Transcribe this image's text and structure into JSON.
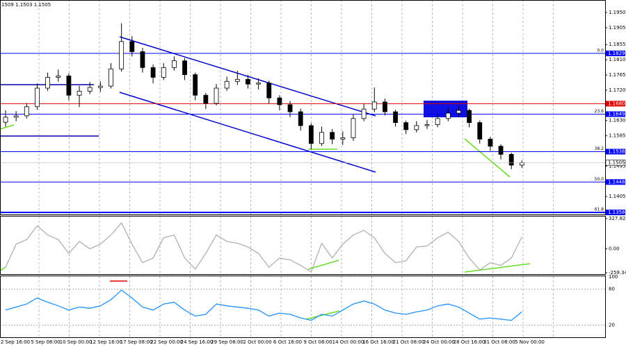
{
  "chart_data": {
    "type": "candlestick",
    "header": "1509 1.1503 1.1505",
    "open": [
      1.1625,
      1.164,
      1.1644,
      1.1671,
      1.1726,
      1.1758,
      1.1762,
      1.1705,
      1.1717,
      1.1728,
      1.1732,
      1.1783,
      1.1864,
      1.1834,
      1.1787,
      1.1758,
      1.1787,
      1.1807,
      1.1766,
      1.1705,
      1.1681,
      1.1726,
      1.1746,
      1.1752,
      1.1738,
      1.1741,
      1.1697,
      1.1677,
      1.1656,
      1.1615,
      1.1562,
      1.1595,
      1.1575,
      1.1579,
      1.1636,
      1.1664,
      1.1685,
      1.1656,
      1.1624,
      1.1603,
      1.1615,
      1.1618,
      1.1636,
      1.1652,
      1.166,
      1.1624,
      1.1575,
      1.1554,
      1.153,
      1.1498
    ],
    "high": [
      1.166,
      1.1658,
      1.1682,
      1.174,
      1.1772,
      1.1781,
      1.177,
      1.1733,
      1.1744,
      1.1746,
      1.18,
      1.1918,
      1.188,
      1.1845,
      1.1796,
      1.18,
      1.182,
      1.1815,
      1.1772,
      1.1712,
      1.1738,
      1.176,
      1.1778,
      1.1765,
      1.1755,
      1.1748,
      1.1705,
      1.1688,
      1.1665,
      1.1622,
      1.1612,
      1.1605,
      1.1598,
      1.1648,
      1.168,
      1.1728,
      1.1695,
      1.1662,
      1.163,
      1.1628,
      1.1632,
      1.1648,
      1.1668,
      1.1672,
      1.1665,
      1.163,
      1.1582,
      1.156,
      1.1535,
      1.1512
    ],
    "low": [
      1.1612,
      1.1628,
      1.1636,
      1.1662,
      1.1718,
      1.1745,
      1.169,
      1.167,
      1.1708,
      1.1715,
      1.1725,
      1.1775,
      1.182,
      1.1772,
      1.174,
      1.175,
      1.1778,
      1.175,
      1.169,
      1.1664,
      1.1675,
      1.1718,
      1.1735,
      1.1725,
      1.1722,
      1.168,
      1.166,
      1.164,
      1.16,
      1.1545,
      1.1555,
      1.156,
      1.1558,
      1.157,
      1.1628,
      1.1655,
      1.1645,
      1.1612,
      1.159,
      1.1595,
      1.1605,
      1.161,
      1.1628,
      1.164,
      1.161,
      1.1562,
      1.154,
      1.1515,
      1.1486,
      1.149
    ],
    "close": [
      1.164,
      1.1644,
      1.1671,
      1.1726,
      1.1758,
      1.1762,
      1.1705,
      1.1717,
      1.1728,
      1.1732,
      1.1783,
      1.1864,
      1.1834,
      1.1787,
      1.1758,
      1.1787,
      1.1807,
      1.1766,
      1.1705,
      1.1681,
      1.1726,
      1.1746,
      1.1752,
      1.1738,
      1.1741,
      1.1697,
      1.1677,
      1.1656,
      1.1615,
      1.1562,
      1.1595,
      1.1575,
      1.1579,
      1.1636,
      1.1664,
      1.1685,
      1.1656,
      1.1624,
      1.1603,
      1.1615,
      1.1618,
      1.1636,
      1.1652,
      1.166,
      1.1624,
      1.1575,
      1.1554,
      1.153,
      1.1498,
      1.1505
    ],
    "ylim": [
      1.1352,
      1.1987
    ],
    "yticks": [
      {
        "value": 1.195,
        "label": "1.1950"
      },
      1.1905,
      1.1855,
      {
        "value": 1.181,
        "label": "1.1810"
      },
      1.1765,
      {
        "value": 1.172,
        "label": "1.1720"
      },
      {
        "value": 1.163,
        "label": "1.1630"
      },
      1.1585,
      1.1495,
      1.1405
    ],
    "levels": [
      {
        "value": 1.1829,
        "fib": "0.0"
      },
      {
        "value": 1.1649,
        "fib": "23.6"
      },
      {
        "value": 1.1538,
        "fib": "38.2"
      },
      {
        "value": 1.1448,
        "fib": "50.0"
      },
      {
        "value": 1.1358,
        "fib": "61.8"
      }
    ],
    "resistance": {
      "value": 1.168,
      "label": "1.1680",
      "color": "#e00000"
    },
    "level_color": "#0000ff",
    "cci": {
      "values": [
        -200,
        50,
        100,
        250,
        150,
        100,
        -50,
        80,
        0,
        50,
        150,
        280,
        50,
        -150,
        -100,
        120,
        150,
        -100,
        -220,
        -50,
        150,
        80,
        60,
        20,
        -50,
        -200,
        -100,
        -120,
        -180,
        -250,
        60,
        -100,
        50,
        150,
        200,
        120,
        -50,
        -150,
        -130,
        20,
        30,
        120,
        180,
        80,
        -100,
        -230,
        -150,
        -180,
        -100,
        130
      ],
      "color": "#b0b0b0",
      "ylim": [
        -282,
        350
      ],
      "yticks": [
        327.826,
        {
          "value": 0,
          "label": "0.00"
        },
        -259.342
      ]
    },
    "rsi": {
      "values": [
        45,
        50,
        55,
        65,
        58,
        52,
        45,
        50,
        48,
        52,
        62,
        78,
        65,
        50,
        45,
        55,
        58,
        45,
        35,
        38,
        55,
        52,
        50,
        48,
        45,
        35,
        40,
        38,
        32,
        28,
        38,
        35,
        45,
        55,
        60,
        55,
        45,
        40,
        38,
        42,
        45,
        52,
        55,
        50,
        40,
        30,
        32,
        30,
        28,
        42
      ],
      "color": "#1e90ff",
      "ylim": [
        0,
        101
      ],
      "yticks": [
        100,
        80,
        20
      ]
    },
    "x_labels": [
      "2 Sep 16:00",
      "5 Sep 08:00",
      "10 Sep 00:00",
      "12 Sep 16:00",
      "17 Sep 08:00",
      "22 Sep 00:00",
      "24 Sep 16:00",
      "29 Sep 08:00",
      "2 Oct 00:00",
      "6 Oct 16:00",
      "9 Oct 08:00",
      "14 Oct 00:00",
      "16 Oct 16:00",
      "21 Oct 08:00",
      "24 Oct 00:00",
      "28 Oct 16:00",
      "31 Oct 08:00",
      "5 Nov 00:00"
    ]
  }
}
